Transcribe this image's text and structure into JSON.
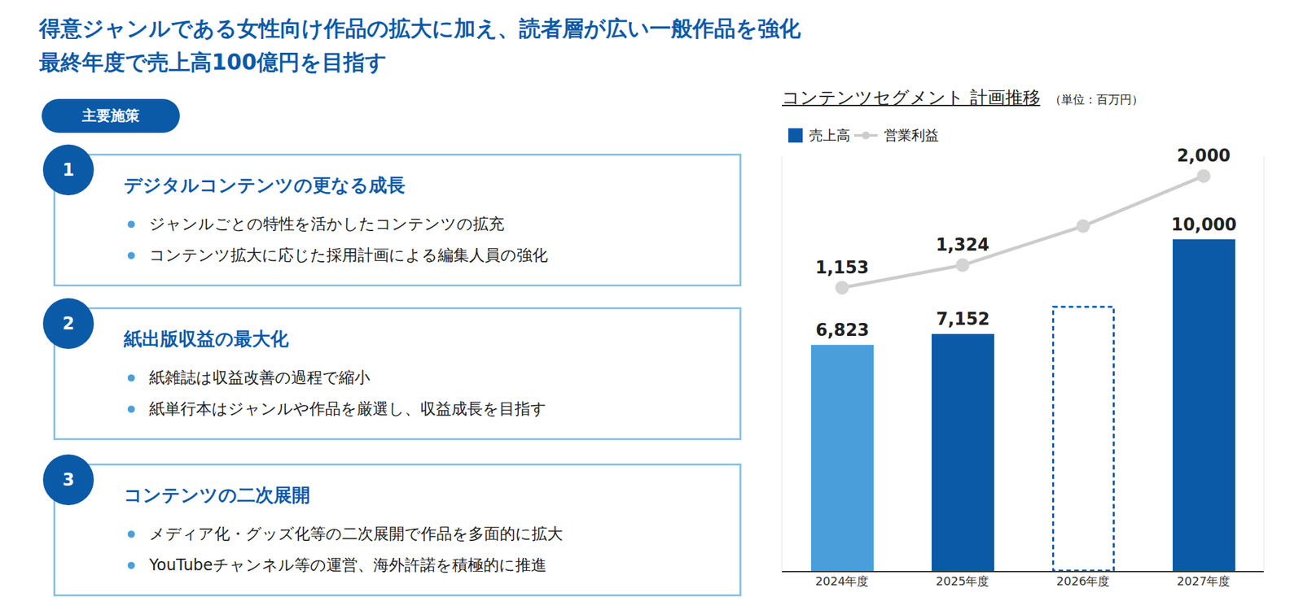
{
  "title": [
    "得意ジャンルである女性向け作品の拡大に加え、読者層が広い一般作品を強化",
    "最終年度で売上高100億円を目指す"
  ],
  "measures_label": "主要施策",
  "measures": [
    {
      "number": 1,
      "heading": "デジタルコンテンツの更なる成長",
      "bullets": [
        "ジャンルごとの特性を活かしたコンテンツの拡充",
        "コンテンツ拡大に応じた採用計画による編集人員の強化"
      ]
    },
    {
      "number": 2,
      "heading": "紙出版収益の最大化",
      "bullets": [
        "紙雑誌は収益改善の過程で縮小",
        "紙単行本はジャンルや作品を厳選し、収益成長を目指す"
      ]
    },
    {
      "number": 3,
      "heading": "コンテンツの二次展開",
      "bullets": [
        "メディア化・グッズ化等の二次展開で作品を多面的に拡大",
        "YouTubeチャンネル等の運営、海外許諾を積極的に推進"
      ]
    }
  ],
  "chart_data": {
    "type": "bar",
    "title": "コンテンツセグメント 計画推移",
    "subtitle": "（単位：百万円）",
    "categories": [
      "2024年度",
      "2025年度",
      "2026年度",
      "2027年度"
    ],
    "series": [
      {
        "name": "売上高",
        "type": "bar",
        "colors": [
          "#4a9fdb",
          "#0b5aa8",
          "#0b5aa8",
          "#0b5aa8"
        ],
        "values": [
          6823,
          7152,
          null,
          10000
        ],
        "value_labels": [
          "6,823",
          "7,152",
          null,
          "10,000"
        ]
      },
      {
        "name": "営業利益",
        "type": "line",
        "axis": "y2",
        "color": "#cccccc",
        "marker": "circle",
        "values": [
          1153,
          1324,
          1620,
          2000
        ],
        "value_labels": [
          "1,153",
          "1,324",
          null,
          "2,000"
        ]
      }
    ],
    "ylim": [
      0,
      12500
    ],
    "y2lim": [
      -1000,
      2150
    ],
    "data_labels": true,
    "tick_labels": "x",
    "legend": "top-left",
    "grid": false
  }
}
